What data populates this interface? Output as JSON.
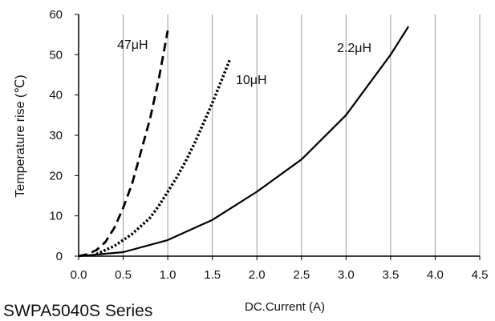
{
  "chart_data": {
    "type": "line",
    "title": "",
    "xlabel": "DC.Current (A)",
    "ylabel": "Temperature rise (℃)",
    "xlim": [
      0,
      4.5
    ],
    "ylim": [
      0,
      60
    ],
    "x_ticks": [
      "0.0",
      "0.5",
      "1.0",
      "1.5",
      "2.0",
      "2.5",
      "3.0",
      "3.5",
      "4.0",
      "4.5"
    ],
    "y_ticks": [
      "0",
      "10",
      "20",
      "30",
      "40",
      "50",
      "60"
    ],
    "grid": "vertical",
    "series": [
      {
        "name": "47μH",
        "style": "dashed",
        "x": [
          0.0,
          0.1,
          0.2,
          0.3,
          0.4,
          0.5,
          0.6,
          0.7,
          0.8,
          0.9,
          1.0
        ],
        "y": [
          0,
          0.5,
          1.5,
          3.5,
          7,
          12,
          18,
          26,
          34,
          44,
          56
        ]
      },
      {
        "name": "10μH",
        "style": "dotted",
        "x": [
          0.2,
          0.3,
          0.4,
          0.5,
          0.6,
          0.7,
          0.8,
          0.9,
          1.0,
          1.1,
          1.2,
          1.3,
          1.4,
          1.5,
          1.6,
          1.7
        ],
        "y": [
          0.5,
          1.5,
          2.5,
          4,
          5.5,
          7.5,
          9.5,
          12.5,
          16,
          19.5,
          23.5,
          28,
          33,
          38,
          43.5,
          49
        ]
      },
      {
        "name": "2.2μH",
        "style": "solid",
        "x": [
          0.0,
          0.5,
          1.0,
          1.5,
          2.0,
          2.5,
          3.0,
          3.5,
          3.7
        ],
        "y": [
          0,
          1,
          4,
          9,
          16,
          24,
          35,
          50,
          57
        ]
      }
    ]
  },
  "footer": {
    "text": "SWPA5040S Series"
  }
}
